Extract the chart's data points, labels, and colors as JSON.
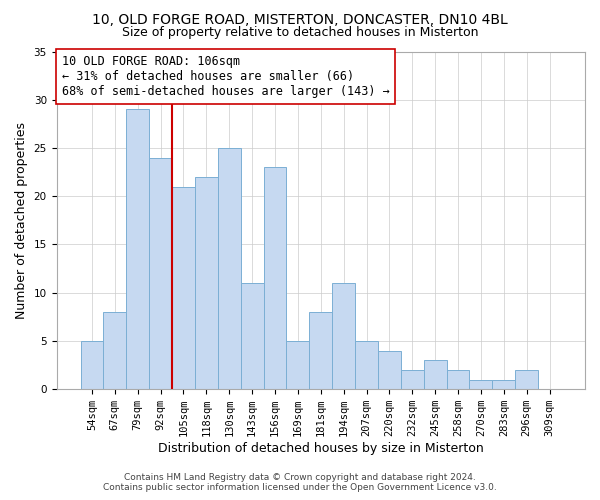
{
  "title": "10, OLD FORGE ROAD, MISTERTON, DONCASTER, DN10 4BL",
  "subtitle": "Size of property relative to detached houses in Misterton",
  "xlabel": "Distribution of detached houses by size in Misterton",
  "ylabel": "Number of detached properties",
  "bar_labels": [
    "54sqm",
    "67sqm",
    "79sqm",
    "92sqm",
    "105sqm",
    "118sqm",
    "130sqm",
    "143sqm",
    "156sqm",
    "169sqm",
    "181sqm",
    "194sqm",
    "207sqm",
    "220sqm",
    "232sqm",
    "245sqm",
    "258sqm",
    "270sqm",
    "283sqm",
    "296sqm",
    "309sqm"
  ],
  "bar_values": [
    5,
    8,
    29,
    24,
    21,
    22,
    25,
    11,
    23,
    5,
    8,
    11,
    5,
    4,
    2,
    3,
    2,
    1,
    1,
    2,
    0
  ],
  "bar_color": "#c6d9f1",
  "bar_edge_color": "#7bafd4",
  "vline_color": "#cc0000",
  "vline_index": 4,
  "ylim": [
    0,
    35
  ],
  "yticks": [
    0,
    5,
    10,
    15,
    20,
    25,
    30,
    35
  ],
  "annotation_title": "10 OLD FORGE ROAD: 106sqm",
  "annotation_line1": "← 31% of detached houses are smaller (66)",
  "annotation_line2": "68% of semi-detached houses are larger (143) →",
  "footer_line1": "Contains HM Land Registry data © Crown copyright and database right 2024.",
  "footer_line2": "Contains public sector information licensed under the Open Government Licence v3.0.",
  "title_fontsize": 10,
  "subtitle_fontsize": 9,
  "axis_label_fontsize": 9,
  "tick_fontsize": 7.5,
  "annotation_fontsize": 8.5,
  "footer_fontsize": 6.5
}
